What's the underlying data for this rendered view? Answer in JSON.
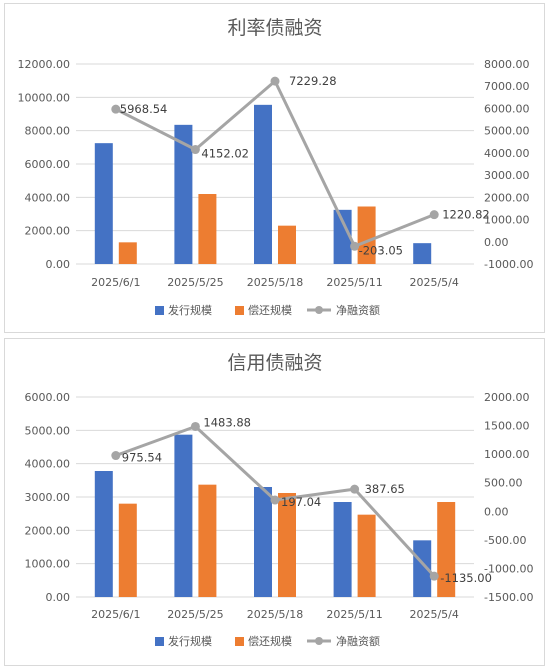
{
  "chart_data": [
    {
      "type": "bar",
      "title": "利率债融资",
      "categories": [
        "2025/6/1",
        "2025/5/25",
        "2025/5/18",
        "2025/5/11",
        "2025/5/4"
      ],
      "series": [
        {
          "name": "发行规模",
          "kind": "bar",
          "axis": "left",
          "color": "#4472C4",
          "values": [
            7250,
            8350,
            9550,
            3250,
            1250
          ]
        },
        {
          "name": "偿还规模",
          "kind": "bar",
          "axis": "left",
          "color": "#ED7D31",
          "values": [
            1300,
            4200,
            2300,
            3450,
            0
          ]
        },
        {
          "name": "净融资额",
          "kind": "line",
          "axis": "right",
          "color": "#A5A5A5",
          "values": [
            5968.54,
            4152.02,
            7229.28,
            -203.05,
            1220.82
          ],
          "labels": [
            "5968.54",
            "4152.02",
            "7229.28",
            "-203.05",
            "1220.82"
          ]
        }
      ],
      "yleft": {
        "min": 0,
        "max": 12000,
        "step": 2000,
        "ticks": [
          "0.00",
          "2000.00",
          "4000.00",
          "6000.00",
          "8000.00",
          "10000.00",
          "12000.00"
        ]
      },
      "yright": {
        "min": -1000,
        "max": 8000,
        "step": 1000,
        "ticks": [
          "-1000.00",
          "0.00",
          "1000.00",
          "2000.00",
          "3000.00",
          "4000.00",
          "5000.00",
          "6000.00",
          "7000.00",
          "8000.00"
        ]
      },
      "grid": true,
      "legend": "bottom"
    },
    {
      "type": "bar",
      "title": "信用债融资",
      "categories": [
        "2025/6/1",
        "2025/5/25",
        "2025/5/18",
        "2025/5/11",
        "2025/5/4"
      ],
      "series": [
        {
          "name": "发行规模",
          "kind": "bar",
          "axis": "left",
          "color": "#4472C4",
          "values": [
            3780,
            4870,
            3300,
            2850,
            1700
          ]
        },
        {
          "name": "偿还规模",
          "kind": "bar",
          "axis": "left",
          "color": "#ED7D31",
          "values": [
            2800,
            3370,
            3120,
            2470,
            2850
          ]
        },
        {
          "name": "净融资额",
          "kind": "line",
          "axis": "right",
          "color": "#A5A5A5",
          "values": [
            975.54,
            1483.88,
            197.04,
            387.65,
            -1135.0
          ],
          "labels": [
            "975.54",
            "1483.88",
            "197.04",
            "387.65",
            "-1135.00"
          ]
        }
      ],
      "yleft": {
        "min": 0,
        "max": 6000,
        "step": 1000,
        "ticks": [
          "0.00",
          "1000.00",
          "2000.00",
          "3000.00",
          "4000.00",
          "5000.00",
          "6000.00"
        ]
      },
      "yright": {
        "min": -1500,
        "max": 2000,
        "step": 500,
        "ticks": [
          "-1500.00",
          "-1000.00",
          "-500.00",
          "0.00",
          "500.00",
          "1000.00",
          "1500.00",
          "2000.00"
        ]
      },
      "grid": true,
      "legend": "bottom"
    }
  ]
}
